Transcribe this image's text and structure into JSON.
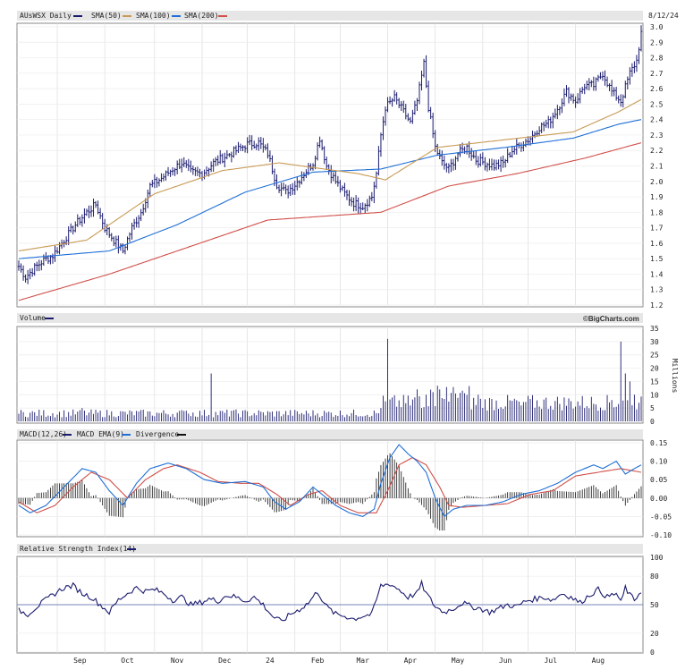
{
  "chart_data": {
    "ticker_label": "AUsWSX Daily",
    "date_label": "8/12/24",
    "watermark": "©BigCharts.com",
    "months": [
      "Sep",
      "Oct",
      "Nov",
      "Dec",
      "24",
      "Feb",
      "Mar",
      "Apr",
      "May",
      "Jun",
      "Jul",
      "Aug"
    ],
    "price": {
      "type": "ohlc",
      "ylim": [
        1.2,
        3.0
      ],
      "yticks": [
        "3.0",
        "2.9",
        "2.8",
        "2.7",
        "2.6",
        "2.5",
        "2.4",
        "2.3",
        "2.2",
        "2.1",
        "2.0",
        "1.9",
        "1.8",
        "1.7",
        "1.6",
        "1.5",
        "1.4",
        "1.3",
        "1.2"
      ],
      "legend": [
        {
          "label": "AUsWSX Daily",
          "color": "#1a1a6e"
        },
        {
          "label": "SMA(50)",
          "color": "#c89a55"
        },
        {
          "label": "SMA(100)",
          "color": "#1f6fd6"
        },
        {
          "label": "SMA(200)",
          "color": "#d0504a"
        }
      ],
      "close_anchors": [
        [
          0,
          1.45
        ],
        [
          3,
          1.38
        ],
        [
          7,
          1.44
        ],
        [
          11,
          1.49
        ],
        [
          15,
          1.52
        ],
        [
          20,
          1.62
        ],
        [
          25,
          1.72
        ],
        [
          30,
          1.8
        ],
        [
          34,
          1.85
        ],
        [
          38,
          1.7
        ],
        [
          42,
          1.62
        ],
        [
          46,
          1.55
        ],
        [
          50,
          1.7
        ],
        [
          54,
          1.8
        ],
        [
          58,
          1.97
        ],
        [
          63,
          2.02
        ],
        [
          68,
          2.08
        ],
        [
          72,
          2.12
        ],
        [
          76,
          2.06
        ],
        [
          81,
          2.05
        ],
        [
          86,
          2.12
        ],
        [
          91,
          2.16
        ],
        [
          96,
          2.2
        ],
        [
          101,
          2.24
        ],
        [
          106,
          2.25
        ],
        [
          110,
          2.18
        ],
        [
          114,
          1.98
        ],
        [
          118,
          1.93
        ],
        [
          122,
          1.98
        ],
        [
          126,
          2.05
        ],
        [
          130,
          2.12
        ],
        [
          133,
          2.28
        ],
        [
          136,
          2.1
        ],
        [
          140,
          2.0
        ],
        [
          144,
          1.92
        ],
        [
          148,
          1.86
        ],
        [
          152,
          1.84
        ],
        [
          156,
          1.9
        ],
        [
          158,
          2.05
        ],
        [
          160,
          2.3
        ],
        [
          162,
          2.48
        ],
        [
          166,
          2.54
        ],
        [
          170,
          2.45
        ],
        [
          173,
          2.38
        ],
        [
          176,
          2.52
        ],
        [
          179,
          2.76
        ],
        [
          181,
          2.48
        ],
        [
          184,
          2.22
        ],
        [
          187,
          2.12
        ],
        [
          190,
          2.08
        ],
        [
          194,
          2.18
        ],
        [
          198,
          2.22
        ],
        [
          202,
          2.14
        ],
        [
          206,
          2.12
        ],
        [
          210,
          2.1
        ],
        [
          214,
          2.12
        ],
        [
          218,
          2.2
        ],
        [
          222,
          2.24
        ],
        [
          226,
          2.28
        ],
        [
          230,
          2.35
        ],
        [
          234,
          2.38
        ],
        [
          238,
          2.47
        ],
        [
          242,
          2.58
        ],
        [
          246,
          2.52
        ],
        [
          250,
          2.62
        ],
        [
          254,
          2.62
        ],
        [
          258,
          2.7
        ],
        [
          262,
          2.58
        ],
        [
          266,
          2.52
        ],
        [
          270,
          2.7
        ],
        [
          273,
          2.78
        ],
        [
          275,
          2.96
        ]
      ],
      "sma50_anchors": [
        [
          0,
          1.55
        ],
        [
          30,
          1.62
        ],
        [
          60,
          1.92
        ],
        [
          90,
          2.07
        ],
        [
          115,
          2.12
        ],
        [
          150,
          2.05
        ],
        [
          162,
          2.01
        ],
        [
          185,
          2.22
        ],
        [
          215,
          2.27
        ],
        [
          245,
          2.32
        ],
        [
          265,
          2.45
        ],
        [
          275,
          2.53
        ]
      ],
      "sma100_anchors": [
        [
          0,
          1.5
        ],
        [
          40,
          1.55
        ],
        [
          70,
          1.72
        ],
        [
          100,
          1.93
        ],
        [
          130,
          2.06
        ],
        [
          160,
          2.08
        ],
        [
          185,
          2.17
        ],
        [
          215,
          2.22
        ],
        [
          245,
          2.28
        ],
        [
          265,
          2.37
        ],
        [
          275,
          2.4
        ]
      ],
      "sma200_anchors": [
        [
          0,
          1.23
        ],
        [
          40,
          1.4
        ],
        [
          80,
          1.6
        ],
        [
          110,
          1.75
        ],
        [
          160,
          1.8
        ],
        [
          190,
          1.97
        ],
        [
          220,
          2.05
        ],
        [
          250,
          2.15
        ],
        [
          275,
          2.25
        ]
      ]
    },
    "volume": {
      "ylim": [
        0,
        35
      ],
      "yticks": [
        "35",
        "30",
        "25",
        "20",
        "15",
        "10",
        "5",
        "0"
      ],
      "unit_label": "Millions",
      "legend": [
        {
          "label": "Volume",
          "color": "#1a1a6e"
        }
      ],
      "spikes": [
        [
          28,
          5
        ],
        [
          85,
          18
        ],
        [
          74,
          4
        ],
        [
          94,
          4
        ],
        [
          160,
          5
        ],
        [
          163,
          31
        ],
        [
          175,
          9
        ],
        [
          180,
          10
        ],
        [
          183,
          11
        ],
        [
          186,
          12
        ],
        [
          203,
          10
        ],
        [
          222,
          6
        ],
        [
          250,
          5
        ],
        [
          262,
          8
        ],
        [
          266,
          30
        ],
        [
          268,
          18
        ],
        [
          270,
          15
        ],
        [
          272,
          10
        ],
        [
          274,
          7
        ]
      ]
    },
    "macd": {
      "ylim": [
        -0.1,
        0.15
      ],
      "yticks": [
        "0.15",
        "0.10",
        "0.05",
        "0.00",
        "-0.05",
        "-0.10"
      ],
      "legend": [
        {
          "label": "MACD(12,26)",
          "color": "#1a1a6e"
        },
        {
          "label": "MACD EMA(9)",
          "color": "#1f6fd6"
        },
        {
          "label": "Divergence",
          "color": "#d0504a"
        },
        {
          "label": "",
          "color": "#111111"
        }
      ],
      "macd_anchors": [
        [
          0,
          -0.02
        ],
        [
          5,
          -0.04
        ],
        [
          12,
          -0.02
        ],
        [
          20,
          0.03
        ],
        [
          28,
          0.08
        ],
        [
          34,
          0.07
        ],
        [
          40,
          0.02
        ],
        [
          46,
          -0.02
        ],
        [
          52,
          0.04
        ],
        [
          58,
          0.08
        ],
        [
          66,
          0.095
        ],
        [
          74,
          0.08
        ],
        [
          82,
          0.05
        ],
        [
          90,
          0.04
        ],
        [
          100,
          0.045
        ],
        [
          108,
          0.03
        ],
        [
          113,
          -0.01
        ],
        [
          118,
          -0.03
        ],
        [
          124,
          -0.01
        ],
        [
          130,
          0.03
        ],
        [
          134,
          0.01
        ],
        [
          140,
          -0.02
        ],
        [
          146,
          -0.04
        ],
        [
          152,
          -0.05
        ],
        [
          157,
          -0.03
        ],
        [
          160,
          0.04
        ],
        [
          164,
          0.11
        ],
        [
          168,
          0.145
        ],
        [
          172,
          0.12
        ],
        [
          176,
          0.1
        ],
        [
          180,
          0.07
        ],
        [
          184,
          0.0
        ],
        [
          188,
          -0.05
        ],
        [
          192,
          -0.03
        ],
        [
          198,
          -0.02
        ],
        [
          206,
          -0.02
        ],
        [
          214,
          -0.01
        ],
        [
          222,
          0.01
        ],
        [
          230,
          0.02
        ],
        [
          238,
          0.04
        ],
        [
          246,
          0.07
        ],
        [
          254,
          0.09
        ],
        [
          258,
          0.08
        ],
        [
          264,
          0.1
        ],
        [
          268,
          0.065
        ],
        [
          272,
          0.08
        ],
        [
          275,
          0.09
        ]
      ],
      "signal_anchors": [
        [
          0,
          -0.01
        ],
        [
          8,
          -0.04
        ],
        [
          16,
          -0.02
        ],
        [
          24,
          0.03
        ],
        [
          32,
          0.07
        ],
        [
          40,
          0.05
        ],
        [
          48,
          0.0
        ],
        [
          56,
          0.05
        ],
        [
          64,
          0.08
        ],
        [
          70,
          0.09
        ],
        [
          80,
          0.07
        ],
        [
          88,
          0.045
        ],
        [
          98,
          0.04
        ],
        [
          106,
          0.04
        ],
        [
          114,
          0.01
        ],
        [
          120,
          -0.02
        ],
        [
          128,
          0.01
        ],
        [
          134,
          0.02
        ],
        [
          142,
          -0.02
        ],
        [
          150,
          -0.04
        ],
        [
          158,
          -0.04
        ],
        [
          163,
          0.02
        ],
        [
          168,
          0.09
        ],
        [
          174,
          0.11
        ],
        [
          180,
          0.09
        ],
        [
          186,
          0.03
        ],
        [
          190,
          -0.02
        ],
        [
          196,
          -0.025
        ],
        [
          206,
          -0.02
        ],
        [
          216,
          -0.015
        ],
        [
          226,
          0.01
        ],
        [
          236,
          0.02
        ],
        [
          246,
          0.06
        ],
        [
          256,
          0.07
        ],
        [
          266,
          0.08
        ],
        [
          275,
          0.07
        ]
      ]
    },
    "rsi": {
      "ylim": [
        0,
        100
      ],
      "yticks": [
        "100",
        "80",
        "50",
        "20",
        "0"
      ],
      "reference_line": 50,
      "legend": [
        {
          "label": "Relative Strength Index(14)",
          "color": "#1a1a6e"
        }
      ],
      "anchors": [
        [
          0,
          44
        ],
        [
          4,
          40
        ],
        [
          8,
          48
        ],
        [
          12,
          55
        ],
        [
          16,
          62
        ],
        [
          20,
          68
        ],
        [
          24,
          70
        ],
        [
          28,
          62
        ],
        [
          32,
          58
        ],
        [
          36,
          50
        ],
        [
          40,
          42
        ],
        [
          44,
          55
        ],
        [
          48,
          62
        ],
        [
          52,
          68
        ],
        [
          56,
          64
        ],
        [
          60,
          66
        ],
        [
          64,
          62
        ],
        [
          68,
          55
        ],
        [
          72,
          58
        ],
        [
          76,
          50
        ],
        [
          80,
          52
        ],
        [
          84,
          56
        ],
        [
          88,
          54
        ],
        [
          92,
          60
        ],
        [
          96,
          58
        ],
        [
          100,
          54
        ],
        [
          104,
          58
        ],
        [
          108,
          50
        ],
        [
          112,
          38
        ],
        [
          116,
          32
        ],
        [
          120,
          40
        ],
        [
          124,
          45
        ],
        [
          128,
          52
        ],
        [
          132,
          64
        ],
        [
          136,
          48
        ],
        [
          140,
          40
        ],
        [
          144,
          38
        ],
        [
          148,
          35
        ],
        [
          152,
          38
        ],
        [
          156,
          40
        ],
        [
          158,
          55
        ],
        [
          160,
          70
        ],
        [
          164,
          72
        ],
        [
          168,
          66
        ],
        [
          172,
          58
        ],
        [
          176,
          62
        ],
        [
          178,
          72
        ],
        [
          180,
          62
        ],
        [
          184,
          48
        ],
        [
          188,
          42
        ],
        [
          192,
          46
        ],
        [
          196,
          52
        ],
        [
          200,
          48
        ],
        [
          204,
          46
        ],
        [
          208,
          42
        ],
        [
          212,
          46
        ],
        [
          216,
          50
        ],
        [
          220,
          48
        ],
        [
          224,
          54
        ],
        [
          228,
          56
        ],
        [
          232,
          58
        ],
        [
          236,
          55
        ],
        [
          240,
          62
        ],
        [
          244,
          58
        ],
        [
          248,
          52
        ],
        [
          252,
          60
        ],
        [
          256,
          66
        ],
        [
          260,
          58
        ],
        [
          264,
          62
        ],
        [
          266,
          52
        ],
        [
          268,
          68
        ],
        [
          270,
          60
        ],
        [
          272,
          55
        ],
        [
          275,
          65
        ]
      ]
    }
  }
}
